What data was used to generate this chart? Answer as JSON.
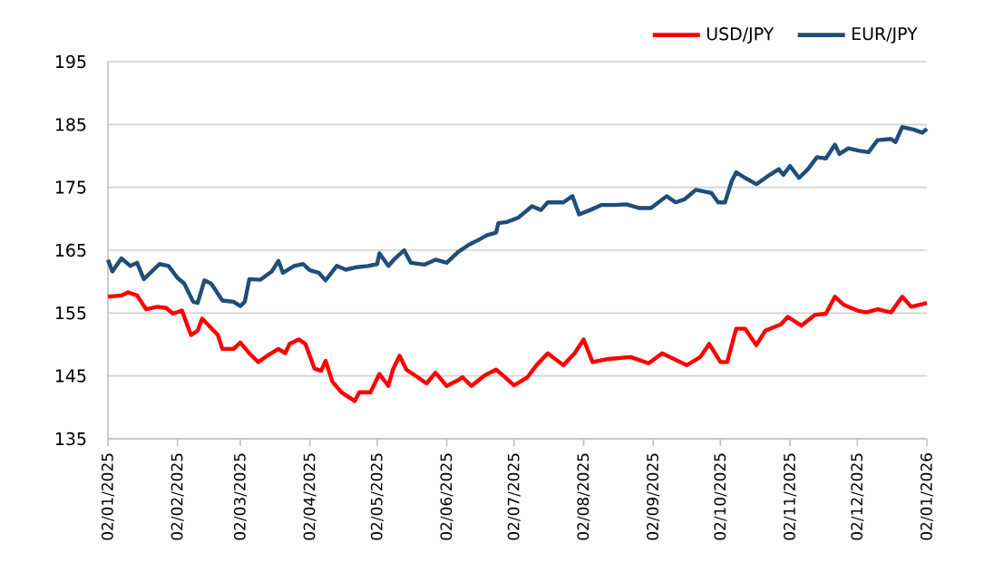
{
  "chart_data": {
    "type": "line",
    "xlim": [
      "2025-01-02",
      "2026-01-02"
    ],
    "ylim": [
      135,
      195
    ],
    "yticks": [
      135,
      145,
      155,
      165,
      175,
      185,
      195
    ],
    "xticks": [
      {
        "value": "2025-01-02",
        "label": "02/01/2025"
      },
      {
        "value": "2025-02-02",
        "label": "02/02/2025"
      },
      {
        "value": "2025-03-02",
        "label": "02/03/2025"
      },
      {
        "value": "2025-04-02",
        "label": "02/04/2025"
      },
      {
        "value": "2025-05-02",
        "label": "02/05/2025"
      },
      {
        "value": "2025-06-02",
        "label": "02/06/2025"
      },
      {
        "value": "2025-07-02",
        "label": "02/07/2025"
      },
      {
        "value": "2025-08-02",
        "label": "02/08/2025"
      },
      {
        "value": "2025-09-02",
        "label": "02/09/2025"
      },
      {
        "value": "2025-10-02",
        "label": "02/10/2025"
      },
      {
        "value": "2025-11-02",
        "label": "02/11/2025"
      },
      {
        "value": "2025-12-02",
        "label": "02/12/2025"
      },
      {
        "value": "2026-01-02",
        "label": "02/01/2026"
      }
    ],
    "grid": "y",
    "legend": "top right",
    "series": [
      {
        "name": "USD/JPY",
        "color": "#ff0000",
        "x": [
          "2025-01-02",
          "2025-01-08",
          "2025-01-11",
          "2025-01-15",
          "2025-01-19",
          "2025-01-24",
          "2025-01-28",
          "2025-01-31",
          "2025-02-04",
          "2025-02-08",
          "2025-02-11",
          "2025-02-13",
          "2025-02-16",
          "2025-02-20",
          "2025-02-22",
          "2025-02-27",
          "2025-03-02",
          "2025-03-06",
          "2025-03-10",
          "2025-03-14",
          "2025-03-19",
          "2025-03-22",
          "2025-03-24",
          "2025-03-28",
          "2025-03-31",
          "2025-04-04",
          "2025-04-07",
          "2025-04-09",
          "2025-04-12",
          "2025-04-16",
          "2025-04-22",
          "2025-04-24",
          "2025-04-29",
          "2025-05-03",
          "2025-05-07",
          "2025-05-09",
          "2025-05-12",
          "2025-05-15",
          "2025-05-20",
          "2025-05-24",
          "2025-05-28",
          "2025-06-02",
          "2025-06-07",
          "2025-06-09",
          "2025-06-13",
          "2025-06-19",
          "2025-06-24",
          "2025-06-28",
          "2025-07-02",
          "2025-07-08",
          "2025-07-12",
          "2025-07-17",
          "2025-07-24",
          "2025-07-29",
          "2025-08-02",
          "2025-08-06",
          "2025-08-13",
          "2025-08-23",
          "2025-08-31",
          "2025-09-06",
          "2025-09-17",
          "2025-09-23",
          "2025-09-27",
          "2025-10-02",
          "2025-10-05",
          "2025-10-09",
          "2025-10-13",
          "2025-10-18",
          "2025-10-22",
          "2025-10-29",
          "2025-11-01",
          "2025-11-07",
          "2025-11-13",
          "2025-11-18",
          "2025-11-22",
          "2025-11-26",
          "2025-12-02",
          "2025-12-06",
          "2025-12-11",
          "2025-12-17",
          "2025-12-22",
          "2025-12-26",
          "2026-01-02"
        ],
        "values": [
          157.6,
          157.8,
          158.3,
          157.8,
          155.6,
          156,
          155.8,
          154.9,
          155.4,
          151.5,
          152.2,
          154.1,
          153,
          151.5,
          149.3,
          149.3,
          150.3,
          148.6,
          147.2,
          148.2,
          149.3,
          148.6,
          150.1,
          150.8,
          150.1,
          146.2,
          145.8,
          147.4,
          144.1,
          142.4,
          141,
          142.4,
          142.4,
          145.3,
          143.4,
          146,
          148.2,
          146,
          144.8,
          143.8,
          145.5,
          143.4,
          144.3,
          144.8,
          143.4,
          145.1,
          146,
          144.8,
          143.5,
          144.8,
          146.7,
          148.6,
          146.7,
          148.6,
          150.8,
          147.2,
          147.7,
          148,
          147,
          148.6,
          146.7,
          148,
          150.1,
          147.2,
          147.2,
          152.5,
          152.5,
          149.9,
          152.2,
          153.2,
          154.4,
          153,
          154.7,
          154.9,
          157.6,
          156.3,
          155.4,
          155.1,
          155.6,
          155.1,
          157.6,
          156,
          156.6
        ]
      },
      {
        "name": "EUR/JPY",
        "color": "#1f4e79",
        "x": [
          "2025-01-02",
          "2025-01-04",
          "2025-01-08",
          "2025-01-12",
          "2025-01-15",
          "2025-01-18",
          "2025-01-25",
          "2025-01-29",
          "2025-02-02",
          "2025-02-05",
          "2025-02-09",
          "2025-02-11",
          "2025-02-14",
          "2025-02-17",
          "2025-02-22",
          "2025-02-27",
          "2025-03-02",
          "2025-03-04",
          "2025-03-06",
          "2025-03-11",
          "2025-03-14",
          "2025-03-16",
          "2025-03-19",
          "2025-03-21",
          "2025-03-26",
          "2025-03-30",
          "2025-04-02",
          "2025-04-06",
          "2025-04-09",
          "2025-04-14",
          "2025-04-18",
          "2025-04-23",
          "2025-04-28",
          "2025-05-02",
          "2025-05-03",
          "2025-05-07",
          "2025-05-10",
          "2025-05-14",
          "2025-05-17",
          "2025-05-23",
          "2025-05-28",
          "2025-06-02",
          "2025-06-07",
          "2025-06-12",
          "2025-06-16",
          "2025-06-20",
          "2025-06-24",
          "2025-06-25",
          "2025-06-29",
          "2025-07-04",
          "2025-07-10",
          "2025-07-14",
          "2025-07-17",
          "2025-07-24",
          "2025-07-28",
          "2025-07-31",
          "2025-08-05",
          "2025-08-10",
          "2025-08-16",
          "2025-08-21",
          "2025-08-27",
          "2025-09-01",
          "2025-09-08",
          "2025-09-12",
          "2025-09-16",
          "2025-09-21",
          "2025-09-28",
          "2025-10-01",
          "2025-10-04",
          "2025-10-07",
          "2025-10-09",
          "2025-10-13",
          "2025-10-18",
          "2025-10-24",
          "2025-10-28",
          "2025-10-30",
          "2025-11-02",
          "2025-11-06",
          "2025-11-10",
          "2025-11-14",
          "2025-11-18",
          "2025-11-22",
          "2025-11-24",
          "2025-11-28",
          "2025-12-03",
          "2025-12-07",
          "2025-12-11",
          "2025-12-17",
          "2025-12-19",
          "2025-12-22",
          "2025-12-27",
          "2025-12-31",
          "2026-01-02"
        ],
        "values": [
          163.5,
          161.6,
          163.7,
          162.5,
          163,
          160.4,
          162.8,
          162.5,
          160.6,
          159.7,
          156.8,
          156.6,
          160.2,
          159.7,
          157,
          156.8,
          156.1,
          156.8,
          160.4,
          160.3,
          161.1,
          161.6,
          163.3,
          161.4,
          162.5,
          162.8,
          161.8,
          161.4,
          160.2,
          162.5,
          161.9,
          162.3,
          162.5,
          162.8,
          164.5,
          162.5,
          163.7,
          165,
          163,
          162.7,
          163.5,
          163,
          164.7,
          165.9,
          166.6,
          167.4,
          167.8,
          169.3,
          169.5,
          170.2,
          172,
          171.4,
          172.6,
          172.6,
          173.6,
          170.7,
          171.4,
          172.2,
          172.2,
          172.3,
          171.7,
          171.7,
          173.6,
          172.6,
          173.1,
          174.6,
          174.1,
          172.6,
          172.6,
          176,
          177.4,
          176.5,
          175.5,
          177,
          177.9,
          177,
          178.4,
          176.5,
          177.9,
          179.8,
          179.6,
          181.8,
          180.3,
          181.2,
          180.8,
          180.6,
          182.5,
          182.7,
          182.2,
          184.6,
          184.2,
          183.7,
          184.3
        ]
      }
    ]
  }
}
